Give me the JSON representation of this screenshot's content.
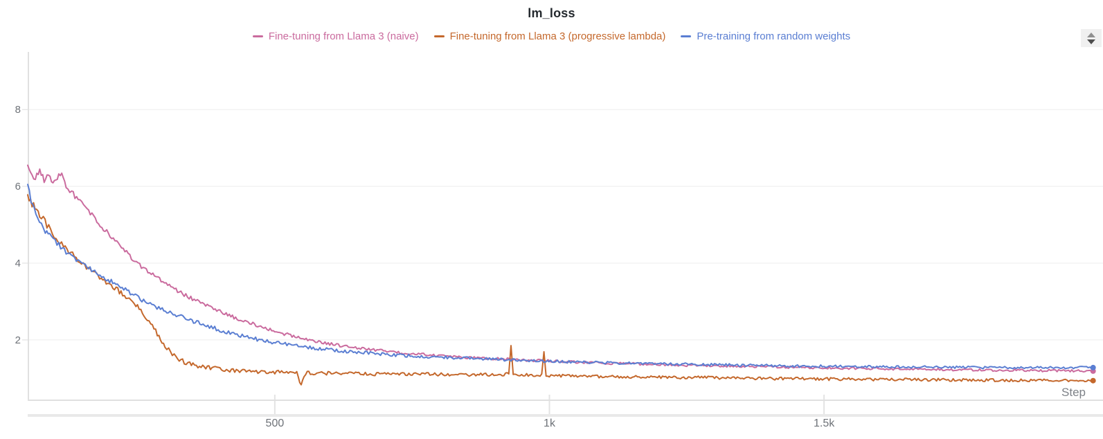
{
  "title": "lm_loss",
  "legend": {
    "items": [
      {
        "label": "Fine-tuning from Llama 3 (naive)",
        "color": "#ca6b9e"
      },
      {
        "label": "Fine-tuning from Llama 3 (progressive lambda)",
        "color": "#c4682c"
      },
      {
        "label": "Pre-training from random weights",
        "color": "#5a7ed2"
      }
    ]
  },
  "controls": {
    "stepper_icon": "up-down-stepper"
  },
  "style": {
    "grid_color": "#ededed",
    "axis_color": "#e0e0e0",
    "tick_color": "#dcdcdc",
    "band_color": "#e9e9e9",
    "label_color": "#6e7278"
  },
  "chart_data": {
    "type": "line",
    "title": "lm_loss",
    "xlabel": "Step",
    "ylabel": "",
    "xlim": [
      50,
      2008
    ],
    "ylim": [
      0.43,
      9.5
    ],
    "grid": "horizontal",
    "legend_position": "top",
    "x_ticks": [
      {
        "value": 500,
        "label": "500"
      },
      {
        "value": 1000,
        "label": "1k"
      },
      {
        "value": 1500,
        "label": "1.5k"
      }
    ],
    "y_ticks": [
      {
        "value": 2,
        "label": "2"
      },
      {
        "value": 4,
        "label": "4"
      },
      {
        "value": 6,
        "label": "6"
      },
      {
        "value": 8,
        "label": "8"
      }
    ],
    "series": [
      {
        "name": "Fine-tuning from Llama 3 (naive)",
        "color": "#ca6b9e",
        "noise": 0.05,
        "end_marker": true,
        "points": [
          [
            50,
            6.55
          ],
          [
            58,
            6.3
          ],
          [
            64,
            6.2
          ],
          [
            72,
            6.45
          ],
          [
            80,
            6.15
          ],
          [
            88,
            6.3
          ],
          [
            96,
            6.1
          ],
          [
            104,
            6.25
          ],
          [
            112,
            6.3
          ],
          [
            120,
            6.0
          ],
          [
            130,
            5.85
          ],
          [
            142,
            5.65
          ],
          [
            155,
            5.45
          ],
          [
            170,
            5.2
          ],
          [
            185,
            4.95
          ],
          [
            200,
            4.72
          ],
          [
            215,
            4.5
          ],
          [
            230,
            4.27
          ],
          [
            245,
            4.05
          ],
          [
            260,
            3.88
          ],
          [
            275,
            3.72
          ],
          [
            290,
            3.57
          ],
          [
            305,
            3.43
          ],
          [
            320,
            3.3
          ],
          [
            335,
            3.18
          ],
          [
            350,
            3.07
          ],
          [
            365,
            2.97
          ],
          [
            380,
            2.87
          ],
          [
            400,
            2.74
          ],
          [
            420,
            2.62
          ],
          [
            440,
            2.52
          ],
          [
            460,
            2.42
          ],
          [
            480,
            2.32
          ],
          [
            500,
            2.23
          ],
          [
            520,
            2.15
          ],
          [
            540,
            2.08
          ],
          [
            560,
            2.01
          ],
          [
            580,
            1.95
          ],
          [
            600,
            1.9
          ],
          [
            625,
            1.84
          ],
          [
            650,
            1.79
          ],
          [
            680,
            1.74
          ],
          [
            710,
            1.69
          ],
          [
            740,
            1.65
          ],
          [
            780,
            1.61
          ],
          [
            820,
            1.57
          ],
          [
            860,
            1.54
          ],
          [
            900,
            1.51
          ],
          [
            950,
            1.48
          ],
          [
            1000,
            1.45
          ],
          [
            1060,
            1.42
          ],
          [
            1120,
            1.39
          ],
          [
            1180,
            1.37
          ],
          [
            1250,
            1.34
          ],
          [
            1320,
            1.32
          ],
          [
            1400,
            1.3
          ],
          [
            1480,
            1.28
          ],
          [
            1560,
            1.26
          ],
          [
            1650,
            1.24
          ],
          [
            1750,
            1.22
          ],
          [
            1850,
            1.21
          ],
          [
            1990,
            1.19
          ]
        ]
      },
      {
        "name": "Fine-tuning from Llama 3 (progressive lambda)",
        "color": "#c4682c",
        "noise": 0.06,
        "end_marker": true,
        "points": [
          [
            50,
            5.78
          ],
          [
            58,
            5.55
          ],
          [
            66,
            5.38
          ],
          [
            75,
            5.2
          ],
          [
            85,
            5.0
          ],
          [
            95,
            4.8
          ],
          [
            105,
            4.6
          ],
          [
            115,
            4.45
          ],
          [
            125,
            4.3
          ],
          [
            135,
            4.18
          ],
          [
            148,
            4.02
          ],
          [
            160,
            3.88
          ],
          [
            175,
            3.72
          ],
          [
            190,
            3.55
          ],
          [
            205,
            3.4
          ],
          [
            220,
            3.22
          ],
          [
            235,
            3.05
          ],
          [
            250,
            2.85
          ],
          [
            262,
            2.65
          ],
          [
            274,
            2.45
          ],
          [
            283,
            2.22
          ],
          [
            292,
            2.0
          ],
          [
            300,
            1.85
          ],
          [
            310,
            1.68
          ],
          [
            320,
            1.55
          ],
          [
            332,
            1.45
          ],
          [
            345,
            1.38
          ],
          [
            360,
            1.32
          ],
          [
            380,
            1.27
          ],
          [
            400,
            1.24
          ],
          [
            430,
            1.21
          ],
          [
            460,
            1.18
          ],
          [
            500,
            1.16
          ],
          [
            540,
            1.15
          ],
          [
            548,
            0.82
          ],
          [
            556,
            1.14
          ],
          [
            600,
            1.13
          ],
          [
            650,
            1.12
          ],
          [
            700,
            1.11
          ],
          [
            750,
            1.11
          ],
          [
            800,
            1.1
          ],
          [
            860,
            1.09
          ],
          [
            920,
            1.1
          ],
          [
            926,
            1.12
          ],
          [
            930,
            1.88
          ],
          [
            934,
            1.1
          ],
          [
            986,
            1.08
          ],
          [
            990,
            1.72
          ],
          [
            994,
            1.07
          ],
          [
            1060,
            1.05
          ],
          [
            1130,
            1.04
          ],
          [
            1200,
            1.03
          ],
          [
            1280,
            1.02
          ],
          [
            1360,
            1.0
          ],
          [
            1440,
            0.99
          ],
          [
            1530,
            0.98
          ],
          [
            1620,
            0.97
          ],
          [
            1720,
            0.96
          ],
          [
            1820,
            0.95
          ],
          [
            1990,
            0.94
          ]
        ]
      },
      {
        "name": "Pre-training from random weights",
        "color": "#5a7ed2",
        "noise": 0.055,
        "end_marker": true,
        "points": [
          [
            50,
            6.05
          ],
          [
            56,
            5.65
          ],
          [
            62,
            5.4
          ],
          [
            68,
            5.2
          ],
          [
            75,
            5.0
          ],
          [
            82,
            4.85
          ],
          [
            90,
            4.7
          ],
          [
            100,
            4.55
          ],
          [
            110,
            4.42
          ],
          [
            120,
            4.3
          ],
          [
            132,
            4.18
          ],
          [
            145,
            4.05
          ],
          [
            158,
            3.92
          ],
          [
            172,
            3.8
          ],
          [
            188,
            3.65
          ],
          [
            205,
            3.5
          ],
          [
            222,
            3.35
          ],
          [
            240,
            3.2
          ],
          [
            258,
            3.05
          ],
          [
            276,
            2.92
          ],
          [
            295,
            2.8
          ],
          [
            315,
            2.68
          ],
          [
            335,
            2.57
          ],
          [
            355,
            2.47
          ],
          [
            378,
            2.36
          ],
          [
            400,
            2.26
          ],
          [
            425,
            2.16
          ],
          [
            450,
            2.07
          ],
          [
            480,
            1.98
          ],
          [
            510,
            1.91
          ],
          [
            540,
            1.84
          ],
          [
            570,
            1.79
          ],
          [
            600,
            1.74
          ],
          [
            640,
            1.69
          ],
          [
            680,
            1.65
          ],
          [
            720,
            1.61
          ],
          [
            770,
            1.57
          ],
          [
            820,
            1.54
          ],
          [
            870,
            1.51
          ],
          [
            930,
            1.48
          ],
          [
            990,
            1.45
          ],
          [
            1060,
            1.42
          ],
          [
            1130,
            1.4
          ],
          [
            1200,
            1.38
          ],
          [
            1280,
            1.36
          ],
          [
            1360,
            1.34
          ],
          [
            1440,
            1.32
          ],
          [
            1530,
            1.31
          ],
          [
            1620,
            1.3
          ],
          [
            1720,
            1.29
          ],
          [
            1820,
            1.28
          ],
          [
            1990,
            1.28
          ]
        ]
      }
    ]
  }
}
